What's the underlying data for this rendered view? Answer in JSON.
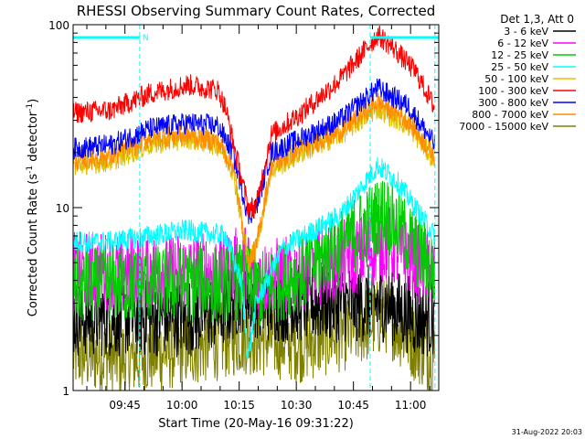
{
  "chart_data": {
    "type": "line",
    "title": "RHESSI Observing Summary Count Rates, Corrected",
    "xlabel": "Start Time (20-May-16 09:31:22)",
    "ylabel_main": "Corrected Count Rate (s",
    "ylabel_sup1": "-1",
    "ylabel_mid": " detector",
    "ylabel_sup2": "-1",
    "ylabel_end": ")",
    "y_scale": "log",
    "ylim": [
      1,
      100
    ],
    "y_ticks": [
      {
        "value": 1,
        "label": "1"
      },
      {
        "value": 10,
        "label": "10"
      },
      {
        "value": 100,
        "label": "100"
      }
    ],
    "x_range_minutes": [
      0,
      96
    ],
    "x_ticks": [
      {
        "minute": 13.6,
        "label": "09:45"
      },
      {
        "minute": 28.6,
        "label": "10:00"
      },
      {
        "minute": 43.6,
        "label": "10:15"
      },
      {
        "minute": 58.6,
        "label": "10:30"
      },
      {
        "minute": 73.6,
        "label": "10:45"
      },
      {
        "minute": 88.6,
        "label": "11:00"
      }
    ],
    "legend_title": "Det 1,3, Att 0",
    "legend_placement": "right",
    "night_marker_label": "N",
    "night_intervals_minutes": [
      [
        0,
        17.5
      ],
      [
        78,
        96
      ]
    ],
    "saa_lines_minutes": [
      17.5,
      78,
      95
    ],
    "date_stamp": "31-Aug-2022 20:03",
    "series": [
      {
        "name": "3 - 6 keV",
        "color": "#000000",
        "key_points": [
          [
            0,
            2.5
          ],
          [
            10,
            2.5
          ],
          [
            30,
            2.5
          ],
          [
            40,
            2.8
          ],
          [
            45,
            3.5
          ],
          [
            50,
            3
          ],
          [
            60,
            3
          ],
          [
            75,
            3
          ],
          [
            82,
            3
          ],
          [
            90,
            2.5
          ],
          [
            95,
            2.5
          ]
        ]
      },
      {
        "name": "6 - 12 keV",
        "color": "#ff00ff",
        "key_points": [
          [
            0,
            4.5
          ],
          [
            20,
            4.5
          ],
          [
            40,
            4.5
          ],
          [
            45,
            5
          ],
          [
            48,
            4
          ],
          [
            60,
            4.5
          ],
          [
            75,
            5.5
          ],
          [
            82,
            6.5
          ],
          [
            90,
            5
          ],
          [
            95,
            4.5
          ]
        ]
      },
      {
        "name": "12 - 25 keV",
        "color": "#00cc00",
        "key_points": [
          [
            0,
            3.7
          ],
          [
            20,
            3.8
          ],
          [
            40,
            3.8
          ],
          [
            45,
            4
          ],
          [
            48,
            3.5
          ],
          [
            60,
            4.3
          ],
          [
            75,
            7.5
          ],
          [
            82,
            9.5
          ],
          [
            90,
            6
          ],
          [
            95,
            4.5
          ]
        ]
      },
      {
        "name": "25 - 50 keV",
        "color": "#00ffff",
        "key_points": [
          [
            0,
            6.5
          ],
          [
            10,
            6.5
          ],
          [
            20,
            7
          ],
          [
            30,
            7.5
          ],
          [
            40,
            7
          ],
          [
            44,
            4
          ],
          [
            46,
            1.5
          ],
          [
            48,
            3
          ],
          [
            55,
            6
          ],
          [
            70,
            9
          ],
          [
            80,
            17
          ],
          [
            85,
            14
          ],
          [
            95,
            7
          ]
        ]
      },
      {
        "name": "50 - 100 keV",
        "color": "#e0c000",
        "key_points": [
          [
            0,
            17
          ],
          [
            10,
            18
          ],
          [
            20,
            22
          ],
          [
            30,
            24
          ],
          [
            38,
            22
          ],
          [
            42,
            16
          ],
          [
            46,
            5
          ],
          [
            48,
            6
          ],
          [
            52,
            16
          ],
          [
            60,
            20
          ],
          [
            70,
            25
          ],
          [
            80,
            35
          ],
          [
            88,
            28
          ],
          [
            95,
            18
          ]
        ]
      },
      {
        "name": "100 - 300 keV",
        "color": "#ff0000",
        "key_points": [
          [
            0,
            33
          ],
          [
            10,
            34
          ],
          [
            20,
            42
          ],
          [
            30,
            47
          ],
          [
            38,
            44
          ],
          [
            40,
            35
          ],
          [
            44,
            15
          ],
          [
            46,
            10
          ],
          [
            48,
            10
          ],
          [
            52,
            25
          ],
          [
            60,
            33
          ],
          [
            70,
            50
          ],
          [
            80,
            88
          ],
          [
            84,
            75
          ],
          [
            90,
            55
          ],
          [
            95,
            35
          ]
        ]
      },
      {
        "name": "300 - 800 keV",
        "color": "#0000ff",
        "key_points": [
          [
            0,
            21
          ],
          [
            10,
            22
          ],
          [
            20,
            27
          ],
          [
            30,
            29
          ],
          [
            38,
            28
          ],
          [
            42,
            20
          ],
          [
            46,
            9
          ],
          [
            48,
            10
          ],
          [
            52,
            20
          ],
          [
            60,
            24
          ],
          [
            70,
            30
          ],
          [
            80,
            45
          ],
          [
            88,
            36
          ],
          [
            95,
            22
          ]
        ]
      },
      {
        "name": "800 - 7000 keV",
        "color": "#ff8c00",
        "key_points": [
          [
            0,
            18
          ],
          [
            10,
            19
          ],
          [
            20,
            24
          ],
          [
            30,
            25
          ],
          [
            38,
            23
          ],
          [
            42,
            17
          ],
          [
            46,
            5
          ],
          [
            48,
            6
          ],
          [
            52,
            17
          ],
          [
            60,
            21
          ],
          [
            70,
            26
          ],
          [
            80,
            38
          ],
          [
            88,
            30
          ],
          [
            95,
            19
          ]
        ]
      },
      {
        "name": "7000 - 15000 keV",
        "color": "#808000",
        "key_points": [
          [
            0,
            1.6
          ],
          [
            15,
            1.5
          ],
          [
            30,
            1.7
          ],
          [
            45,
            2
          ],
          [
            60,
            1.8
          ],
          [
            75,
            2.2
          ],
          [
            82,
            2.6
          ],
          [
            90,
            1.8
          ],
          [
            95,
            1.5
          ]
        ]
      }
    ]
  }
}
